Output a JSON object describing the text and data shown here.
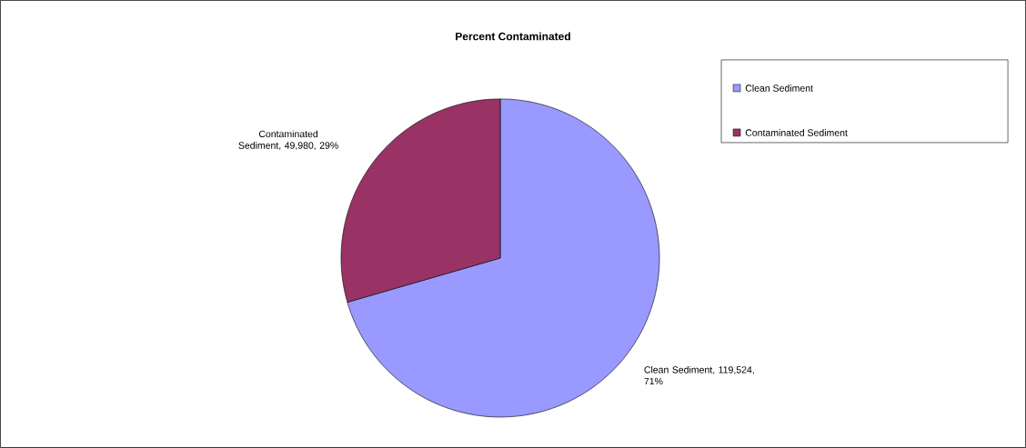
{
  "chart_data": {
    "type": "pie",
    "title": "Percent Contaminated",
    "categories": [
      "Clean Sediment",
      "Contaminated Sediment"
    ],
    "values": [
      119524,
      49980
    ],
    "colors": [
      "#9999ff",
      "#993366"
    ],
    "value_labels": [
      "Clean Sediment, 119,524, 71%",
      "Contaminated Sediment, 49,980, 29%"
    ],
    "legend": "top right"
  }
}
